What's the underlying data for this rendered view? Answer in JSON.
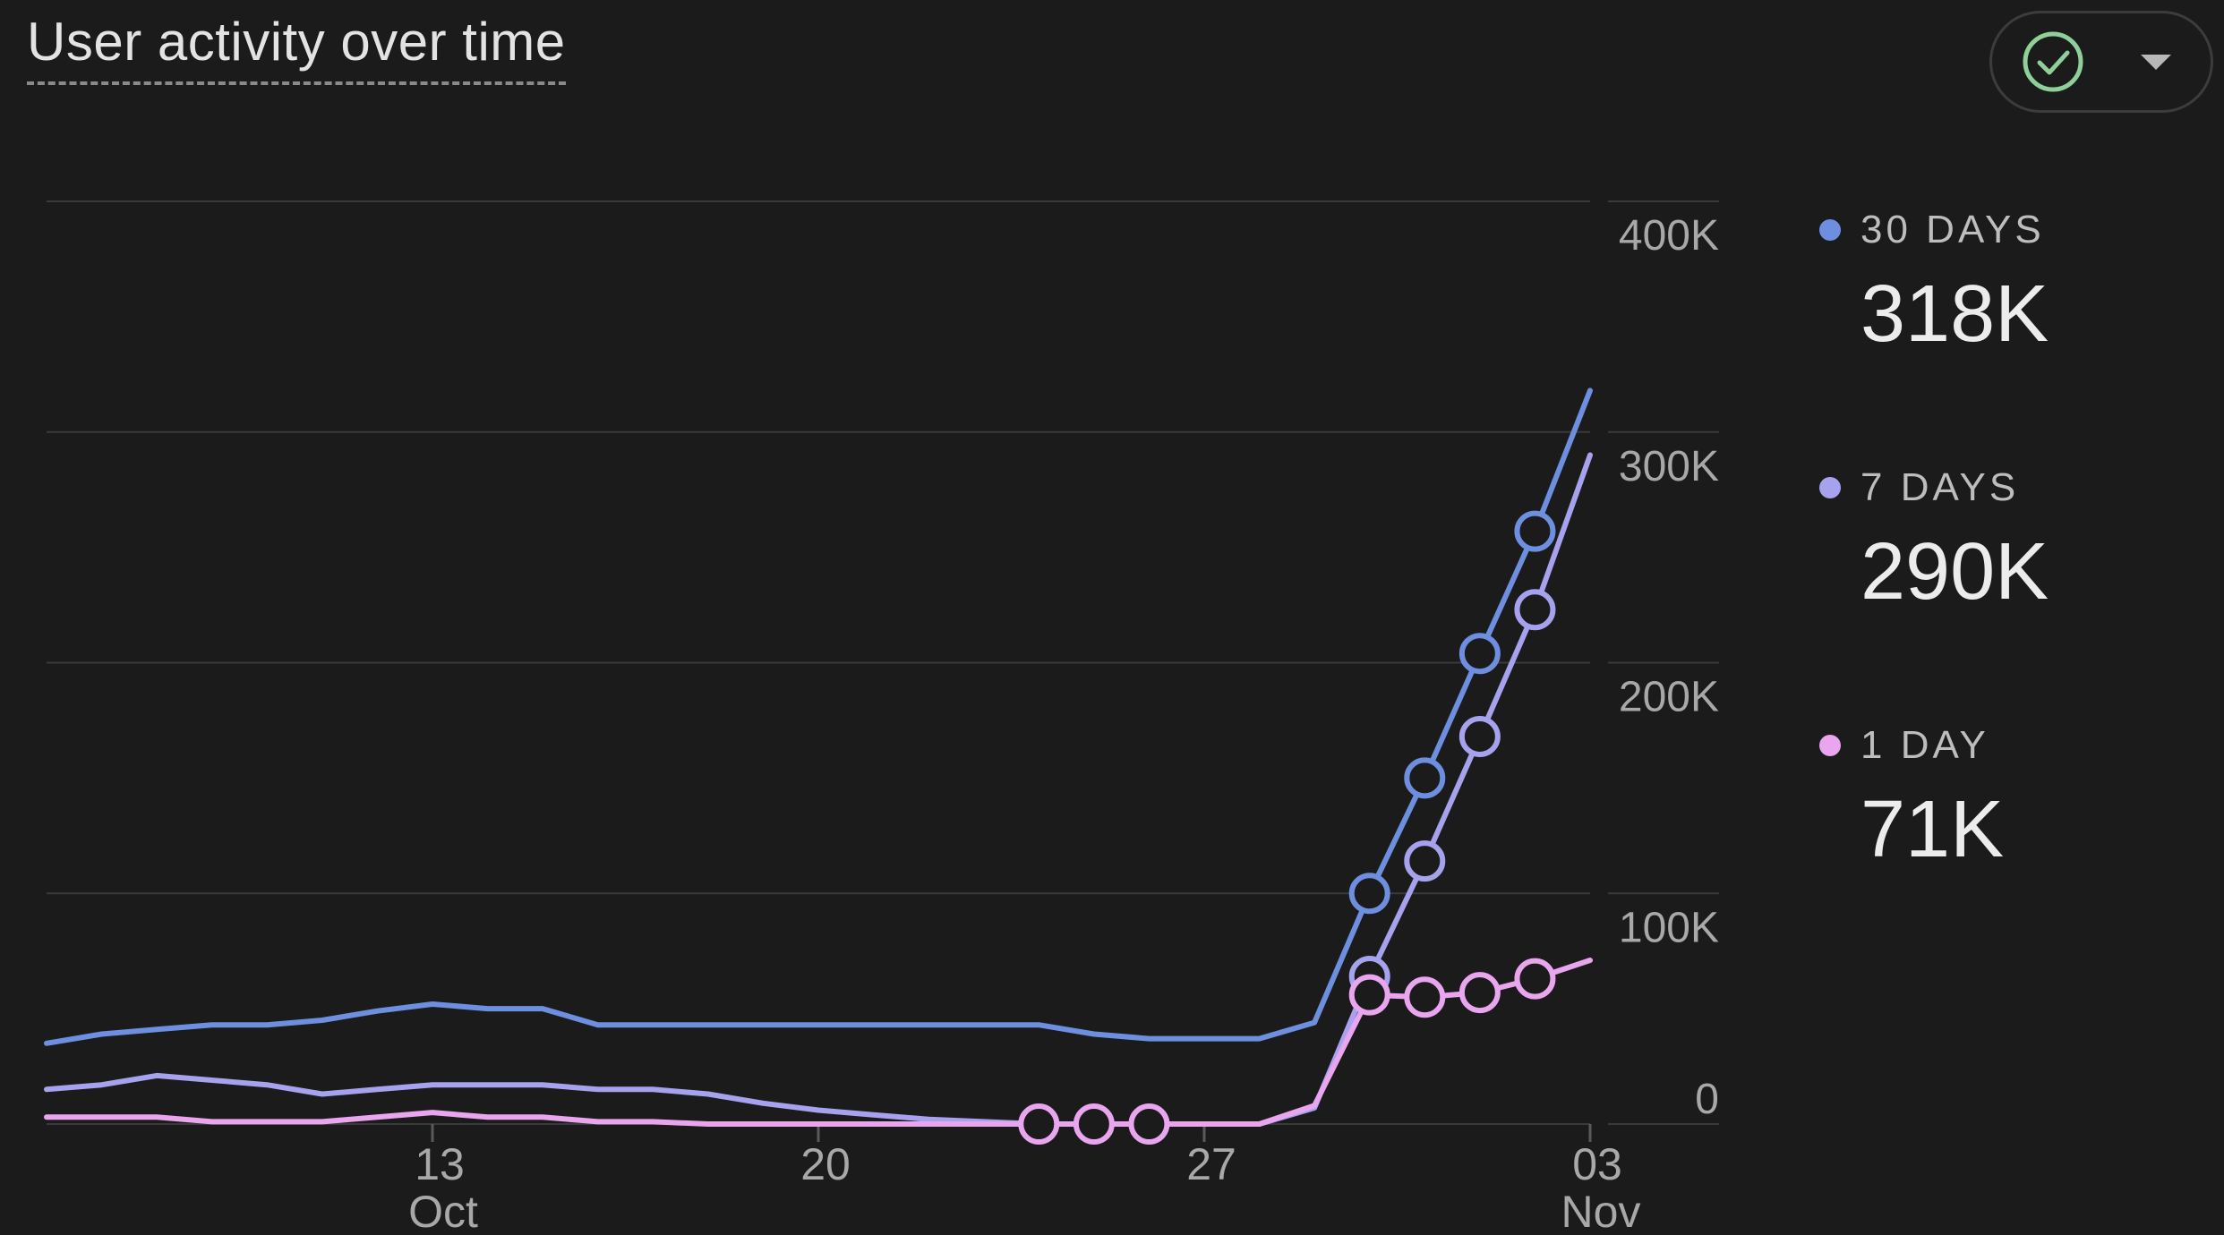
{
  "header": {
    "title": "User activity over time",
    "status_icon": "check-circle-icon",
    "dropdown_icon": "caret-down-icon"
  },
  "colors": {
    "background": "#1b1b1c",
    "grid": "#3a3a3a",
    "thirty_days": "#6e8fe0",
    "seven_days": "#a7a2ee",
    "one_day": "#e9a5ee",
    "check": "#8fcf9a"
  },
  "legend": [
    {
      "label": "30 DAYS",
      "value": "318K"
    },
    {
      "label": "7 DAYS",
      "value": "290K"
    },
    {
      "label": "1 DAY",
      "value": "71K"
    }
  ],
  "chart_data": {
    "type": "line",
    "title": "User activity over time",
    "xlabel": "",
    "ylabel": "",
    "ylim": [
      0,
      400000
    ],
    "y_ticks": [
      {
        "value": 0,
        "label": "0"
      },
      {
        "value": 100000,
        "label": "100K"
      },
      {
        "value": 200000,
        "label": "200K"
      },
      {
        "value": 300000,
        "label": "300K"
      },
      {
        "value": 400000,
        "label": "400K"
      }
    ],
    "x_ticks": [
      {
        "day": 13,
        "label": "13",
        "sub": "Oct"
      },
      {
        "day": 20,
        "label": "20",
        "sub": ""
      },
      {
        "day": 27,
        "label": "27",
        "sub": ""
      },
      {
        "day": 34,
        "label": "03",
        "sub": "Nov"
      }
    ],
    "x_range": [
      6,
      34
    ],
    "axis_position": "right",
    "grid": true,
    "legend_position": "right",
    "series": [
      {
        "name": "30 DAYS",
        "color_key": "thirty_days",
        "points": [
          [
            6,
            35000
          ],
          [
            7,
            39000
          ],
          [
            8,
            41000
          ],
          [
            9,
            43000
          ],
          [
            10,
            43000
          ],
          [
            11,
            45000
          ],
          [
            12,
            49000
          ],
          [
            13,
            52000
          ],
          [
            14,
            50000
          ],
          [
            15,
            50000
          ],
          [
            16,
            43000
          ],
          [
            17,
            43000
          ],
          [
            18,
            43000
          ],
          [
            19,
            43000
          ],
          [
            20,
            43000
          ],
          [
            21,
            43000
          ],
          [
            22,
            43000
          ],
          [
            23,
            43000
          ],
          [
            24,
            43000
          ],
          [
            25,
            39000
          ],
          [
            26,
            37000
          ],
          [
            27,
            37000
          ],
          [
            28,
            37000
          ],
          [
            29,
            44000
          ],
          [
            30,
            100000
          ],
          [
            31,
            150000
          ],
          [
            32,
            204000
          ],
          [
            33,
            257000
          ],
          [
            34,
            318000
          ]
        ],
        "markers": [
          30,
          31,
          32,
          33
        ]
      },
      {
        "name": "7 DAYS",
        "color_key": "seven_days",
        "points": [
          [
            6,
            15000
          ],
          [
            7,
            17000
          ],
          [
            8,
            21000
          ],
          [
            9,
            19000
          ],
          [
            10,
            17000
          ],
          [
            11,
            13000
          ],
          [
            12,
            15000
          ],
          [
            13,
            17000
          ],
          [
            14,
            17000
          ],
          [
            15,
            17000
          ],
          [
            16,
            15000
          ],
          [
            17,
            15000
          ],
          [
            18,
            13000
          ],
          [
            19,
            9000
          ],
          [
            20,
            6000
          ],
          [
            21,
            4000
          ],
          [
            22,
            2000
          ],
          [
            23,
            1000
          ],
          [
            24,
            0
          ],
          [
            25,
            0
          ],
          [
            26,
            0
          ],
          [
            27,
            0
          ],
          [
            28,
            0
          ],
          [
            29,
            7000
          ],
          [
            30,
            64000
          ],
          [
            31,
            114000
          ],
          [
            32,
            168000
          ],
          [
            33,
            223000
          ],
          [
            34,
            290000
          ]
        ],
        "markers": [
          30,
          31,
          32,
          33
        ]
      },
      {
        "name": "1 DAY",
        "color_key": "one_day",
        "points": [
          [
            6,
            3000
          ],
          [
            7,
            3000
          ],
          [
            8,
            3000
          ],
          [
            9,
            1000
          ],
          [
            10,
            1000
          ],
          [
            11,
            1000
          ],
          [
            12,
            3000
          ],
          [
            13,
            5000
          ],
          [
            14,
            3000
          ],
          [
            15,
            3000
          ],
          [
            16,
            1000
          ],
          [
            17,
            1000
          ],
          [
            18,
            0
          ],
          [
            19,
            0
          ],
          [
            20,
            0
          ],
          [
            21,
            0
          ],
          [
            22,
            0
          ],
          [
            23,
            0
          ],
          [
            24,
            0
          ],
          [
            25,
            0
          ],
          [
            26,
            0
          ],
          [
            27,
            0
          ],
          [
            28,
            0
          ],
          [
            29,
            8000
          ],
          [
            30,
            56000
          ],
          [
            31,
            55000
          ],
          [
            32,
            57000
          ],
          [
            33,
            63000
          ],
          [
            34,
            71000
          ]
        ],
        "markers": [
          24,
          25,
          26,
          30,
          31,
          32,
          33
        ]
      }
    ]
  }
}
